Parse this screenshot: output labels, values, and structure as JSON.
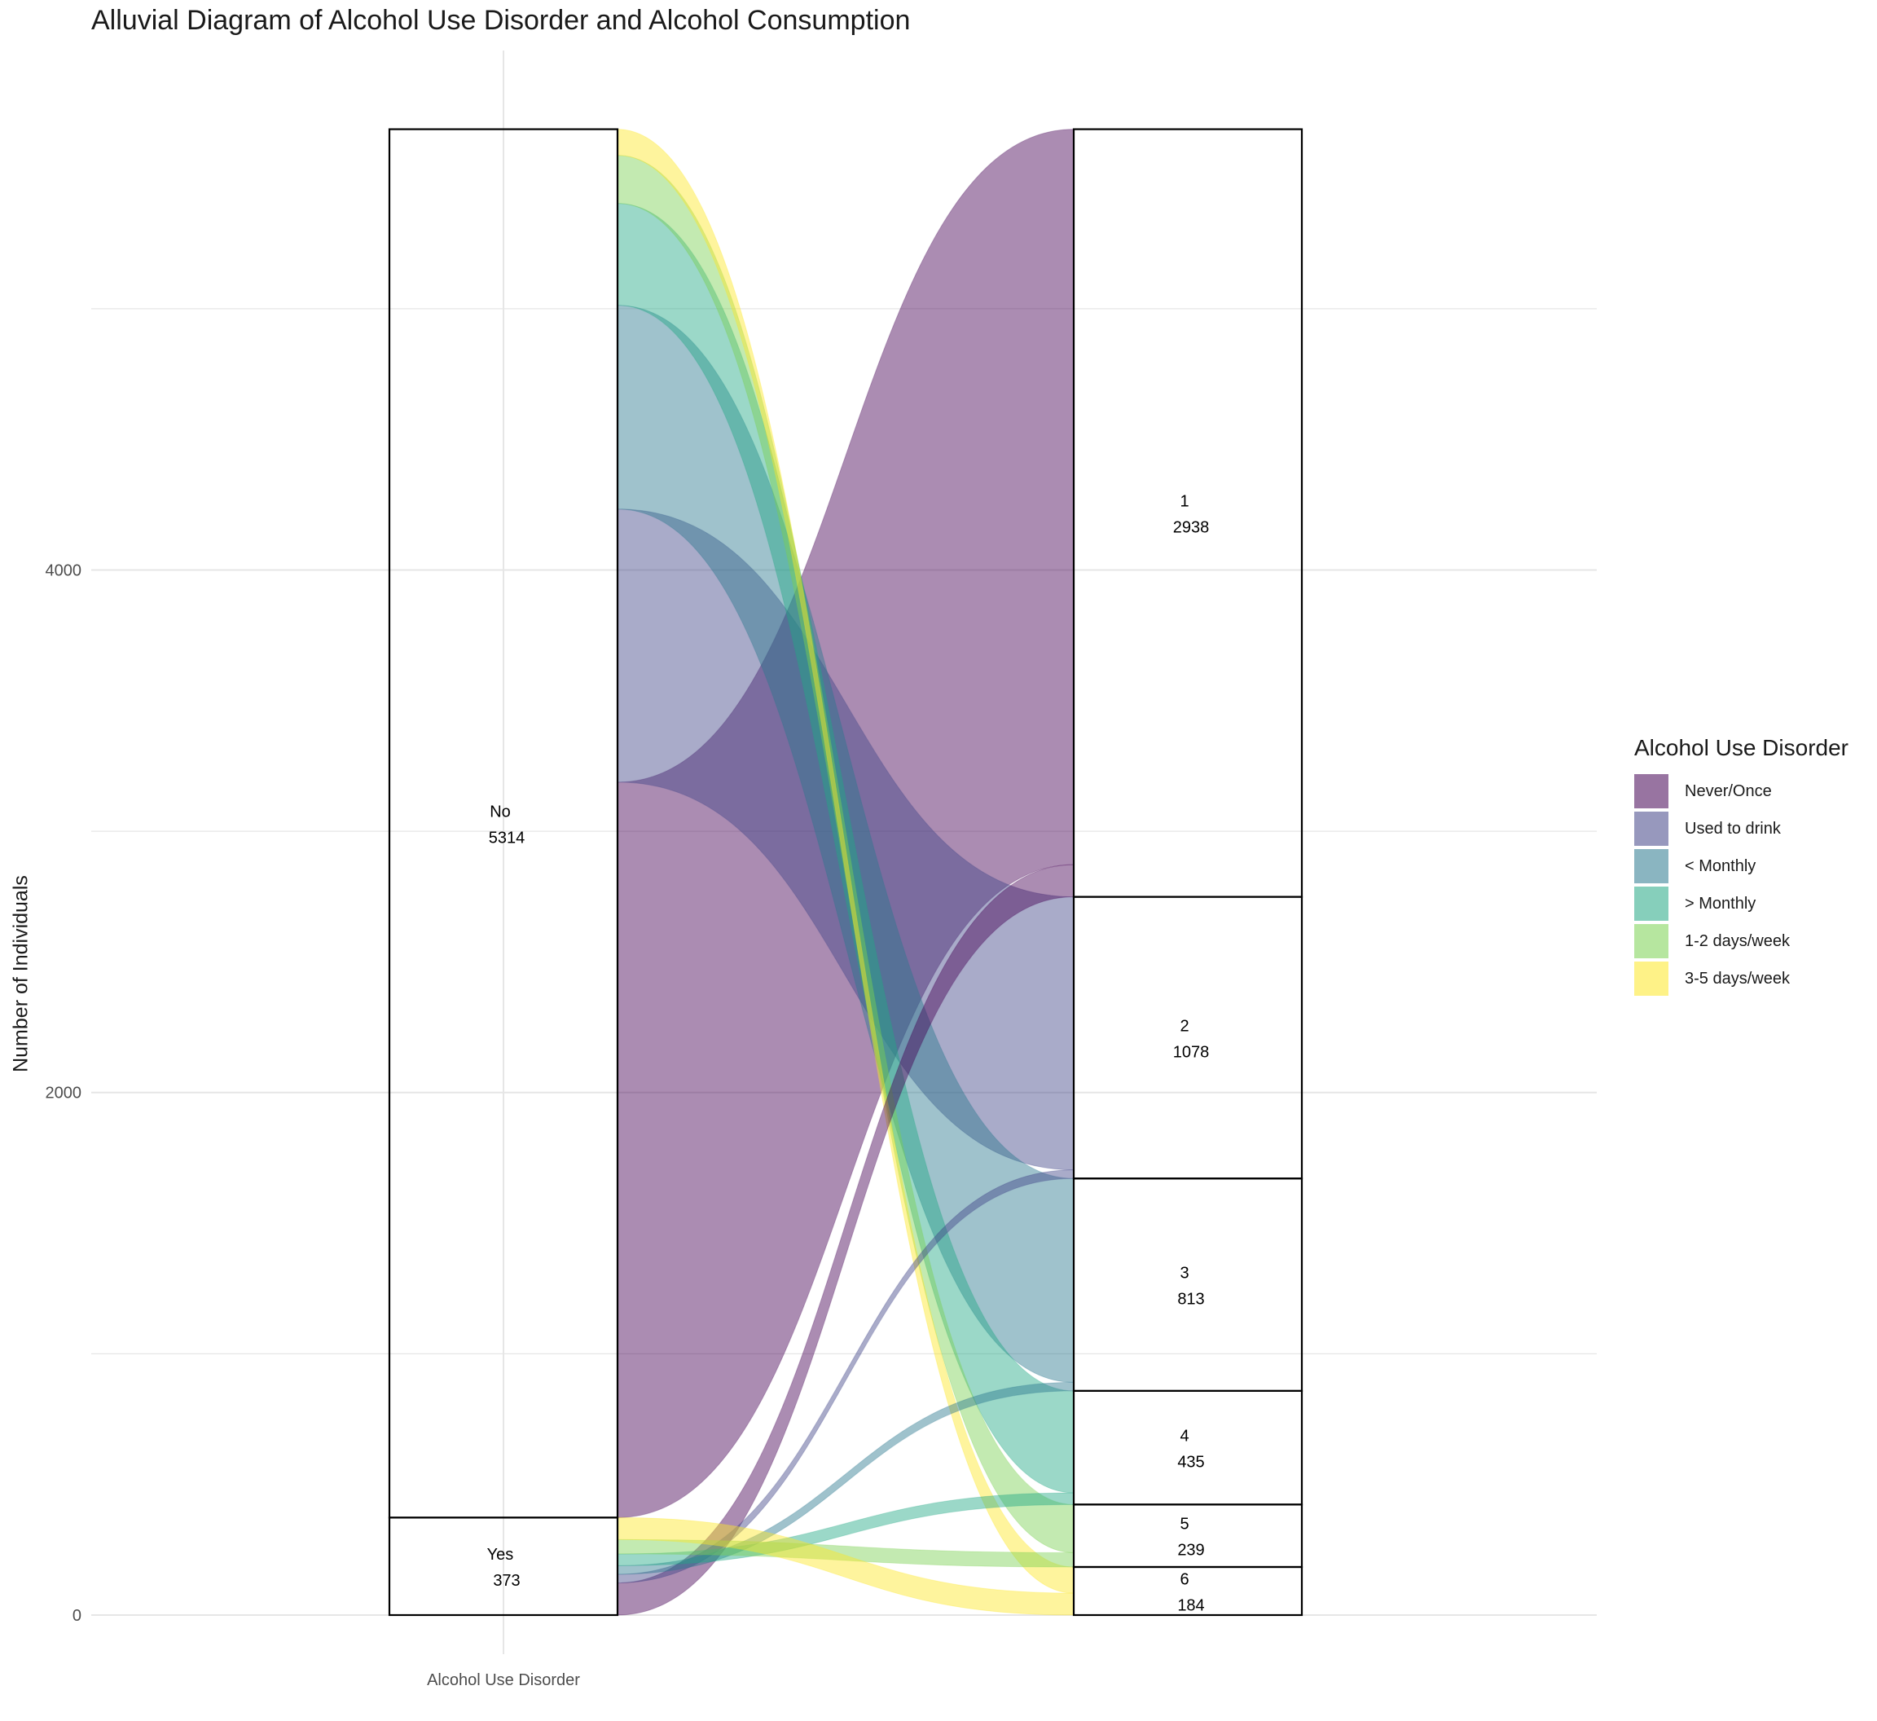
{
  "title": "Alluvial Diagram of Alcohol Use Disorder and Alcohol Consumption",
  "chart_data": {
    "type": "alluvial",
    "title": "Alluvial Diagram of Alcohol Use Disorder and Alcohol Consumption",
    "ylabel": "Number of Individuals",
    "xlabel": "Alcohol Use Disorder",
    "y_ticks": [
      "0",
      "2000",
      "4000"
    ],
    "ylim": [
      0,
      5687
    ],
    "grid": true,
    "legend_title": "Alcohol Use Disorder",
    "legend_position": "right",
    "left_axis": {
      "strata": [
        {
          "label": "Yes",
          "value": "373",
          "n": 373
        },
        {
          "label": "No",
          "value": "5314",
          "n": 5314
        }
      ]
    },
    "right_axis": {
      "strata": [
        {
          "label": "6",
          "value": "184",
          "n": 184
        },
        {
          "label": "5",
          "value": "239",
          "n": 239
        },
        {
          "label": "4",
          "value": "435",
          "n": 435
        },
        {
          "label": "3",
          "value": "813",
          "n": 813
        },
        {
          "label": "2",
          "value": "1078",
          "n": 1078
        },
        {
          "label": "1",
          "value": "2938",
          "n": 2938
        }
      ]
    },
    "categories": [
      {
        "name": "Never/Once",
        "color": "#440154",
        "right": "1"
      },
      {
        "name": "Used to drink",
        "color": "#414487",
        "right": "2"
      },
      {
        "name": "< Monthly",
        "color": "#2A788E",
        "right": "3"
      },
      {
        "name": "> Monthly",
        "color": "#22A884",
        "right": "4"
      },
      {
        "name": "1-2 days/week",
        "color": "#7AD151",
        "right": "5"
      },
      {
        "name": "3-5 days/week",
        "color": "#FDE725",
        "right": "6"
      }
    ],
    "flows": [
      {
        "from": "No",
        "to": "1",
        "category": "Never/Once",
        "value": 2815
      },
      {
        "from": "No",
        "to": "2",
        "category": "Used to drink",
        "value": 1045
      },
      {
        "from": "No",
        "to": "3",
        "category": "< Monthly",
        "value": 780
      },
      {
        "from": "No",
        "to": "4",
        "category": "> Monthly",
        "value": 390
      },
      {
        "from": "No",
        "to": "5",
        "category": "1-2 days/week",
        "value": 184
      },
      {
        "from": "No",
        "to": "6",
        "category": "3-5 days/week",
        "value": 100
      },
      {
        "from": "Yes",
        "to": "1",
        "category": "Never/Once",
        "value": 123
      },
      {
        "from": "Yes",
        "to": "2",
        "category": "Used to drink",
        "value": 33
      },
      {
        "from": "Yes",
        "to": "3",
        "category": "< Monthly",
        "value": 33
      },
      {
        "from": "Yes",
        "to": "4",
        "category": "> Monthly",
        "value": 45
      },
      {
        "from": "Yes",
        "to": "5",
        "category": "1-2 days/week",
        "value": 55
      },
      {
        "from": "Yes",
        "to": "6",
        "category": "3-5 days/week",
        "value": 84
      }
    ]
  }
}
